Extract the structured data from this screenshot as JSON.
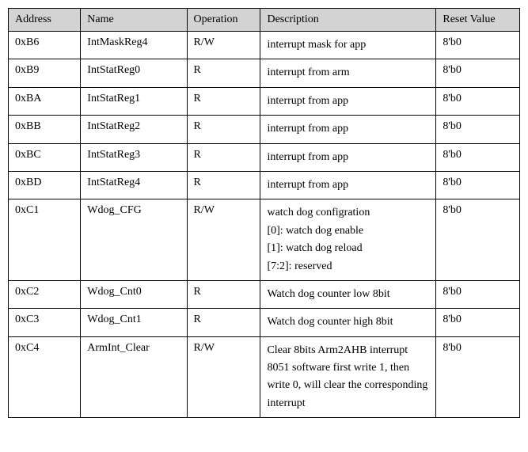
{
  "table": {
    "columns": [
      "Address",
      "Name",
      "Operation",
      "Description",
      "Reset Value"
    ],
    "rows": [
      {
        "address": "0xB6",
        "name": "IntMaskReg4",
        "operation": "R/W",
        "description": [
          "interrupt mask for app"
        ],
        "reset": "8'b0"
      },
      {
        "address": "0xB9",
        "name": "IntStatReg0",
        "operation": "R",
        "description": [
          "interrupt from arm"
        ],
        "reset": "8'b0"
      },
      {
        "address": "0xBA",
        "name": "IntStatReg1",
        "operation": "R",
        "description": [
          "interrupt from app"
        ],
        "reset": "8'b0"
      },
      {
        "address": "0xBB",
        "name": "IntStatReg2",
        "operation": "R",
        "description": [
          "interrupt from app"
        ],
        "reset": "8'b0"
      },
      {
        "address": "0xBC",
        "name": "IntStatReg3",
        "operation": "R",
        "description": [
          "interrupt from app"
        ],
        "reset": "8'b0"
      },
      {
        "address": "0xBD",
        "name": "IntStatReg4",
        "operation": "R",
        "description": [
          "interrupt from app"
        ],
        "reset": "8'b0"
      },
      {
        "address": "0xC1",
        "name": "Wdog_CFG",
        "operation": "R/W",
        "description": [
          "watch dog configration",
          "[0]: watch dog enable",
          "[1]: watch dog reload",
          "[7:2]: reserved"
        ],
        "reset": "8'b0"
      },
      {
        "address": "0xC2",
        "name": "Wdog_Cnt0",
        "operation": "R",
        "description": [
          "Watch dog counter low 8bit"
        ],
        "reset": "8'b0"
      },
      {
        "address": "0xC3",
        "name": "Wdog_Cnt1",
        "operation": "R",
        "description": [
          "Watch dog counter high 8bit"
        ],
        "reset": "8'b0"
      },
      {
        "address": "0xC4",
        "name": "ArmInt_Clear",
        "operation": "R/W",
        "description": [
          "Clear 8bits Arm2AHB interrupt 8051 software first write 1, then write 0, will clear the corresponding interrupt"
        ],
        "reset": "8'b0"
      }
    ],
    "header_bg": "#d3d3d3",
    "border_color": "#000000",
    "font_family": "Times New Roman",
    "font_size": 14
  }
}
